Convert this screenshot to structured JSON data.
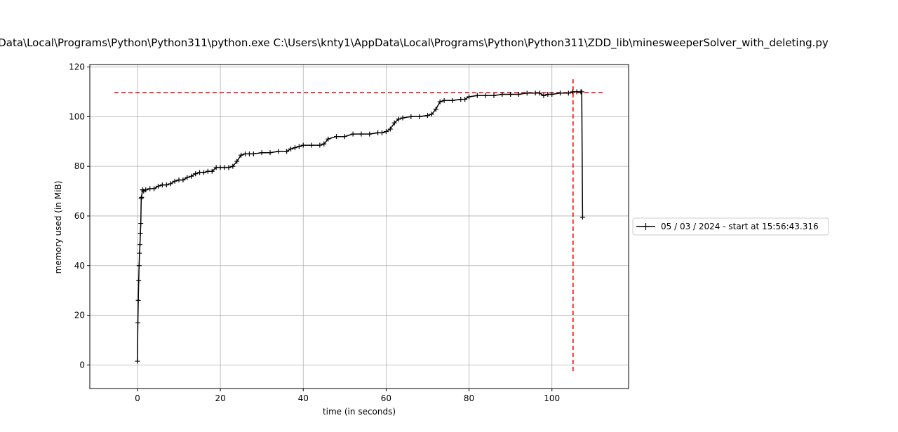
{
  "chart_data": {
    "type": "line",
    "title": "Data\\Local\\Programs\\Python\\Python311\\python.exe C:\\Users\\knty1\\AppData\\Local\\Programs\\Python\\Python311\\ZDD_lib\\minesweeperSolver_with_deleting.py",
    "xlabel": "time (in seconds)",
    "ylabel": "memory used (in MiB)",
    "xlim": [
      -11.5,
      118.5
    ],
    "ylim": [
      -9.5,
      121
    ],
    "xticks": [
      0,
      20,
      40,
      60,
      80,
      100
    ],
    "yticks": [
      0,
      20,
      40,
      60,
      80,
      100,
      120
    ],
    "grid": true,
    "legend_position": "center-right-outside",
    "series": [
      {
        "name": "05 / 03 / 2024 - start at 15:56:43.316",
        "color": "#000000",
        "marker": "+",
        "x": [
          0.0,
          0.1,
          0.2,
          0.3,
          0.4,
          0.5,
          0.6,
          0.7,
          0.8,
          0.9,
          1.0,
          1.2,
          1.5,
          2,
          3,
          4,
          5,
          6,
          7,
          8,
          9,
          10,
          11,
          12,
          13,
          14,
          15,
          16,
          17,
          18,
          19,
          20,
          21,
          22,
          23,
          24,
          25,
          26,
          27,
          28,
          30,
          32,
          34,
          36,
          37,
          38,
          39,
          40,
          42,
          44,
          45,
          46,
          48,
          50,
          52,
          54,
          56,
          58,
          59,
          60,
          61,
          62,
          63,
          64,
          66,
          68,
          70,
          71,
          72,
          73,
          74,
          76,
          78,
          79,
          80,
          82,
          84,
          86,
          88,
          90,
          92,
          94,
          96,
          97,
          98,
          99,
          100,
          102,
          104,
          105,
          106,
          107,
          107.2,
          107.4
        ],
        "y": [
          1.5,
          17,
          26,
          34,
          40,
          45,
          48.5,
          53,
          57,
          67,
          67.5,
          70.5,
          70,
          70.5,
          71,
          71,
          72,
          72.5,
          72.5,
          73,
          74,
          74.5,
          74.5,
          75.5,
          76,
          77,
          77.5,
          77.5,
          78,
          78,
          79.5,
          79.5,
          79.5,
          79.5,
          80,
          82,
          84.5,
          85,
          85,
          85,
          85.5,
          85.5,
          86,
          86,
          87,
          87.5,
          88,
          88.5,
          88.5,
          88.5,
          89,
          91,
          92,
          92,
          93,
          93,
          93,
          93.5,
          93.5,
          94,
          95,
          97.5,
          99,
          99.5,
          100,
          100,
          100.5,
          101,
          103,
          106,
          106.5,
          106.5,
          107,
          107,
          108,
          108.5,
          108.5,
          108.5,
          109,
          109,
          109,
          109.5,
          109.5,
          109.5,
          108.5,
          109,
          109,
          109.5,
          109.5,
          110,
          110,
          110,
          110,
          59.5
        ]
      }
    ],
    "reference_lines": {
      "max_memory": 109.7,
      "max_time": 105.1,
      "color": "#ff0000",
      "style": "dashed"
    }
  }
}
